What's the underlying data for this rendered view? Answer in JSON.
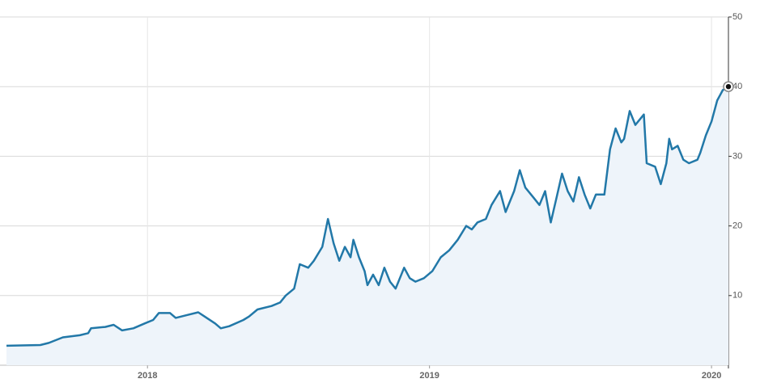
{
  "chart_data": {
    "type": "line",
    "x": [
      2017.5,
      2017.62,
      2017.65,
      2017.7,
      2017.76,
      2017.79,
      2017.8,
      2017.85,
      2017.88,
      2017.91,
      2017.95,
      2017.99,
      2018.02,
      2018.04,
      2018.08,
      2018.1,
      2018.14,
      2018.18,
      2018.21,
      2018.24,
      2018.26,
      2018.29,
      2018.34,
      2018.36,
      2018.39,
      2018.44,
      2018.47,
      2018.49,
      2018.52,
      2018.54,
      2018.57,
      2018.59,
      2018.62,
      2018.64,
      2018.66,
      2018.68,
      2018.7,
      2018.72,
      2018.73,
      2018.75,
      2018.77,
      2018.78,
      2018.8,
      2018.82,
      2018.84,
      2018.86,
      2018.88,
      2018.91,
      2018.93,
      2018.95,
      2018.98,
      2019.01,
      2019.04,
      2019.07,
      2019.1,
      2019.13,
      2019.15,
      2019.17,
      2019.2,
      2019.22,
      2019.25,
      2019.27,
      2019.3,
      2019.32,
      2019.34,
      2019.37,
      2019.39,
      2019.41,
      2019.43,
      2019.45,
      2019.47,
      2019.49,
      2019.51,
      2019.53,
      2019.55,
      2019.57,
      2019.59,
      2019.62,
      2019.64,
      2019.66,
      2019.68,
      2019.69,
      2019.71,
      2019.73,
      2019.76,
      2019.77,
      2019.8,
      2019.82,
      2019.84,
      2019.85,
      2019.86,
      2019.88,
      2019.9,
      2019.92,
      2019.95,
      2019.96,
      2019.98,
      2020.0,
      2020.02,
      2020.04,
      2020.06
    ],
    "series": [
      {
        "color": "#2278a8",
        "values": [
          2.8,
          2.9,
          3.2,
          4.0,
          4.3,
          4.6,
          5.3,
          5.5,
          5.8,
          5.0,
          5.3,
          6.0,
          6.5,
          7.5,
          7.5,
          6.8,
          7.2,
          7.6,
          6.8,
          6.0,
          5.3,
          5.6,
          6.5,
          7.0,
          8.0,
          8.5,
          9.0,
          10.0,
          11.0,
          14.5,
          14.0,
          15.0,
          17.0,
          21.0,
          17.5,
          15.0,
          17.0,
          15.5,
          18.0,
          15.5,
          13.5,
          11.5,
          13.0,
          11.5,
          14.0,
          12.0,
          11.0,
          14.0,
          12.5,
          12.0,
          12.5,
          13.5,
          15.5,
          16.5,
          18.0,
          20.0,
          19.5,
          20.5,
          21.0,
          23.0,
          25.0,
          22.0,
          25.0,
          28.0,
          25.5,
          24.0,
          23.0,
          25.0,
          20.5,
          24.0,
          27.5,
          25.0,
          23.5,
          27.0,
          24.5,
          22.5,
          24.5,
          24.5,
          31.0,
          34.0,
          32.0,
          32.5,
          36.5,
          34.5,
          36.0,
          29.0,
          28.5,
          26.0,
          29.0,
          32.5,
          31.0,
          31.5,
          29.5,
          29.0,
          29.5,
          30.5,
          33.0,
          35.0,
          38.0,
          39.5,
          40.0
        ]
      }
    ],
    "xlim": [
      2017.5,
      2020.06
    ],
    "xticks": [
      2018,
      2019,
      2020
    ],
    "ylim": [
      0,
      50
    ],
    "yticks": [
      10,
      20,
      30,
      40,
      50
    ],
    "grid": true
  }
}
